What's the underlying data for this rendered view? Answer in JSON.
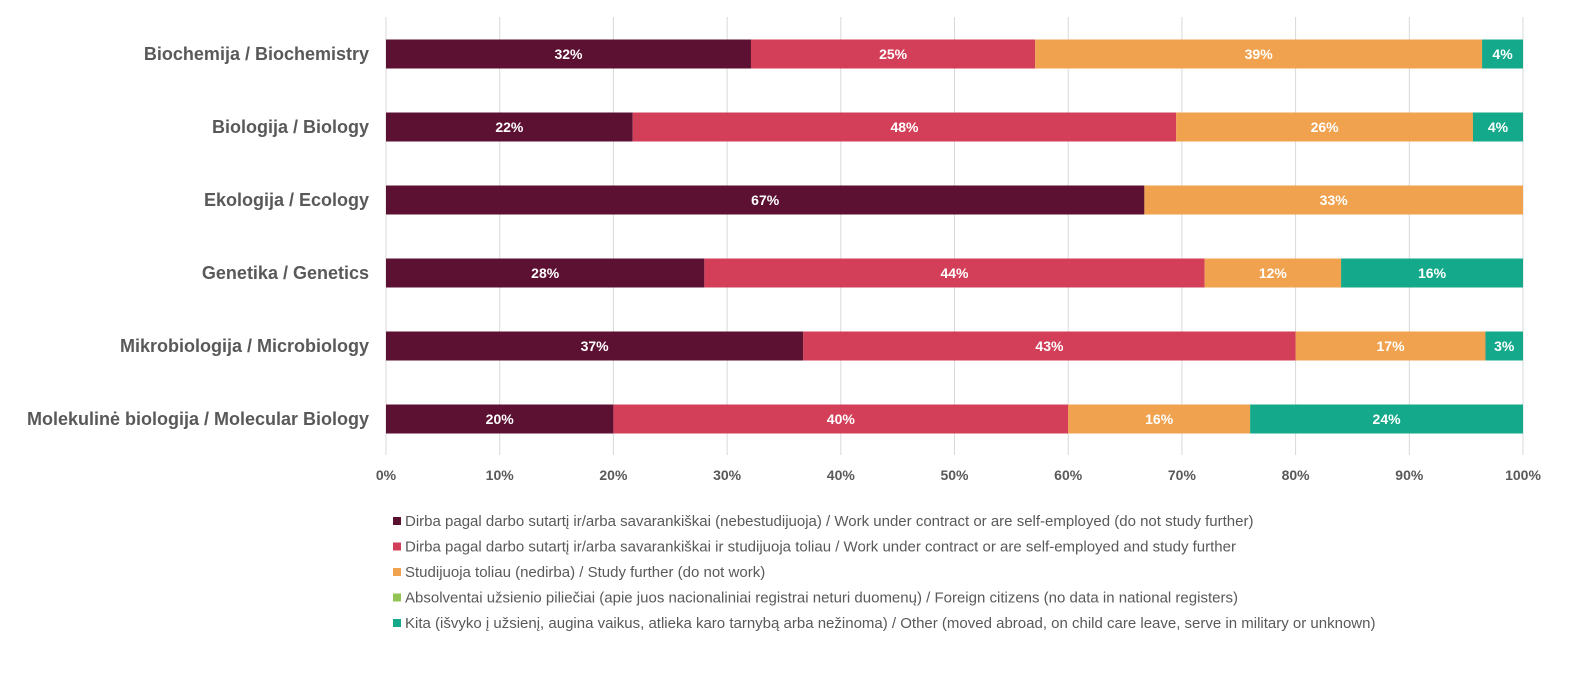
{
  "chart_data": {
    "type": "bar",
    "orientation": "horizontal",
    "stacked": "100%",
    "categories": [
      "Biochemija / Biochemistry",
      "Biologija / Biology",
      "Ekologija / Ecology",
      "Genetika / Genetics",
      "Mikrobiologija / Microbiology",
      "Molekulinė biologija / Molecular Biology"
    ],
    "series": [
      {
        "name": "Dirba pagal darbo sutartį ir/arba savarankiškai (nebestudijuoja) / Work under contract or are self-employed (do not study further)",
        "color": "#5c1032",
        "values": [
          32.1,
          21.7,
          66.7,
          28,
          36.7,
          20
        ],
        "labels": [
          "32%",
          "22%",
          "67%",
          "28%",
          "37%",
          "20%"
        ]
      },
      {
        "name": "Dirba pagal darbo sutartį ir/arba savarankiškai  ir studijuoja toliau / Work under contract or are self-employed and study further",
        "color": "#d33f58",
        "values": [
          25,
          47.8,
          0,
          44,
          43.3,
          40
        ],
        "labels": [
          "25%",
          "48%",
          "",
          "44%",
          "43%",
          "40%"
        ]
      },
      {
        "name": "Studijuoja toliau (nedirba) / Study further (do not work)",
        "color": "#f0a24e",
        "values": [
          39.3,
          26.1,
          33.3,
          12,
          16.7,
          16
        ],
        "labels": [
          "39%",
          "26%",
          "33%",
          "12%",
          "17%",
          "16%"
        ]
      },
      {
        "name": "Absolventai užsienio piliečiai (apie juos nacionaliniai registrai neturi duomenų) / Foreign citizens (no data in national registers)",
        "color": "#92c353",
        "values": [
          0,
          0,
          0,
          0,
          0,
          0
        ],
        "labels": [
          "",
          "",
          "",
          "",
          "",
          ""
        ]
      },
      {
        "name": "Kita (išvyko į užsienį, augina vaikus, atlieka karo tarnybą arba nežinoma) / Other (moved abroad, on child care leave, serve in military or unknown)",
        "color": "#14a98b",
        "values": [
          3.6,
          4.4,
          0,
          16,
          3.3,
          24
        ],
        "labels": [
          "4%",
          "4%",
          "",
          "16%",
          "3%",
          "24%"
        ]
      }
    ],
    "xlim": [
      0,
      100
    ],
    "xticks": [
      0,
      10,
      20,
      30,
      40,
      50,
      60,
      70,
      80,
      90,
      100
    ],
    "xtick_labels": [
      "0%",
      "10%",
      "20%",
      "30%",
      "40%",
      "50%",
      "60%",
      "70%",
      "80%",
      "90%",
      "100%"
    ],
    "grid": true,
    "legend_position": "bottom",
    "title": "",
    "xlabel": "",
    "ylabel": ""
  }
}
